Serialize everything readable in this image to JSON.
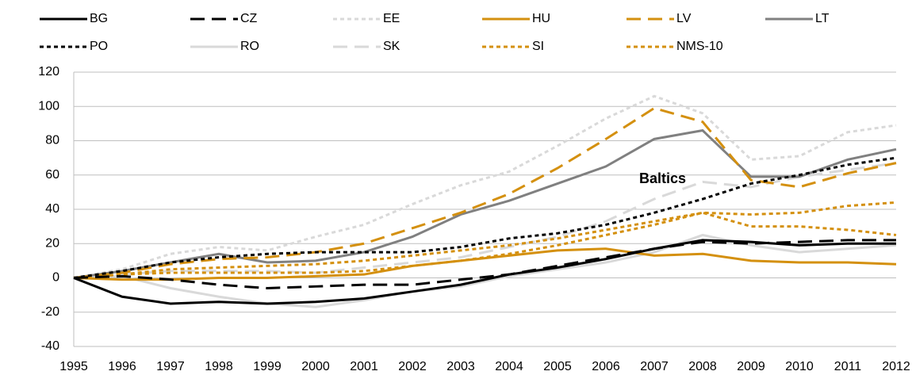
{
  "chart_data": {
    "type": "line",
    "categories": [
      "1995",
      "1996",
      "1997",
      "1998",
      "1999",
      "2000",
      "2001",
      "2002",
      "2003",
      "2004",
      "2005",
      "2006",
      "2007",
      "2008",
      "2009",
      "2010",
      "2011",
      "2012"
    ],
    "ylim": [
      -40,
      120
    ],
    "yticks": [
      -40,
      -20,
      0,
      20,
      40,
      60,
      80,
      100,
      120
    ],
    "grid": true,
    "annotation": "Baltics",
    "series": [
      {
        "name": "BG",
        "color": "#000000",
        "dash": "solid",
        "values": [
          0,
          -11,
          -15,
          -14,
          -15,
          -14,
          -12,
          -8,
          -4,
          2,
          6,
          11,
          17,
          22,
          21,
          19,
          20,
          20
        ]
      },
      {
        "name": "CZ",
        "color": "#000000",
        "dash": "long",
        "values": [
          0,
          1,
          -1,
          -4,
          -6,
          -5,
          -4,
          -4,
          -1,
          2,
          7,
          12,
          17,
          21,
          20,
          21,
          22,
          22
        ]
      },
      {
        "name": "EE",
        "color": "#d9d9d9",
        "dash": "short",
        "values": [
          0,
          5,
          14,
          18,
          16,
          24,
          31,
          43,
          54,
          62,
          77,
          93,
          106,
          96,
          69,
          71,
          85,
          89
        ]
      },
      {
        "name": "HU",
        "color": "#d4900f",
        "dash": "solid",
        "values": [
          0,
          -1,
          -1,
          0,
          0,
          1,
          2,
          7,
          10,
          13,
          16,
          17,
          13,
          14,
          10,
          9,
          9,
          8
        ]
      },
      {
        "name": "LV",
        "color": "#d4900f",
        "dash": "long",
        "values": [
          0,
          3,
          8,
          11,
          12,
          15,
          20,
          29,
          38,
          49,
          64,
          81,
          99,
          91,
          57,
          53,
          61,
          67
        ]
      },
      {
        "name": "LT",
        "color": "#808080",
        "dash": "solid",
        "values": [
          0,
          4,
          9,
          14,
          9,
          10,
          15,
          24,
          37,
          45,
          55,
          65,
          81,
          86,
          59,
          59,
          69,
          75
        ]
      },
      {
        "name": "PO",
        "color": "#000000",
        "dash": "short",
        "values": [
          0,
          4,
          9,
          12,
          14,
          15,
          15,
          15,
          18,
          23,
          26,
          31,
          38,
          46,
          55,
          60,
          66,
          70
        ]
      },
      {
        "name": "RO",
        "color": "#d9d9d9",
        "dash": "solid",
        "values": [
          0,
          1,
          -6,
          -11,
          -15,
          -17,
          -13,
          -8,
          -5,
          1,
          5,
          9,
          15,
          25,
          19,
          15,
          17,
          19
        ]
      },
      {
        "name": "SK",
        "color": "#d9d9d9",
        "dash": "long",
        "values": [
          0,
          2,
          4,
          4,
          4,
          3,
          6,
          9,
          12,
          18,
          24,
          33,
          46,
          56,
          53,
          59,
          63,
          67
        ]
      },
      {
        "name": "SI",
        "color": "#d4900f",
        "dash": "short",
        "values": [
          0,
          2,
          5,
          6,
          7,
          8,
          10,
          13,
          16,
          19,
          23,
          28,
          33,
          38,
          37,
          38,
          42,
          44
        ]
      },
      {
        "name": "NMS-10",
        "color": "#d4900f",
        "dash": "short",
        "values": [
          0,
          2,
          3,
          3,
          3,
          3,
          4,
          7,
          10,
          14,
          19,
          25,
          31,
          38,
          30,
          30,
          28,
          25
        ]
      }
    ]
  }
}
